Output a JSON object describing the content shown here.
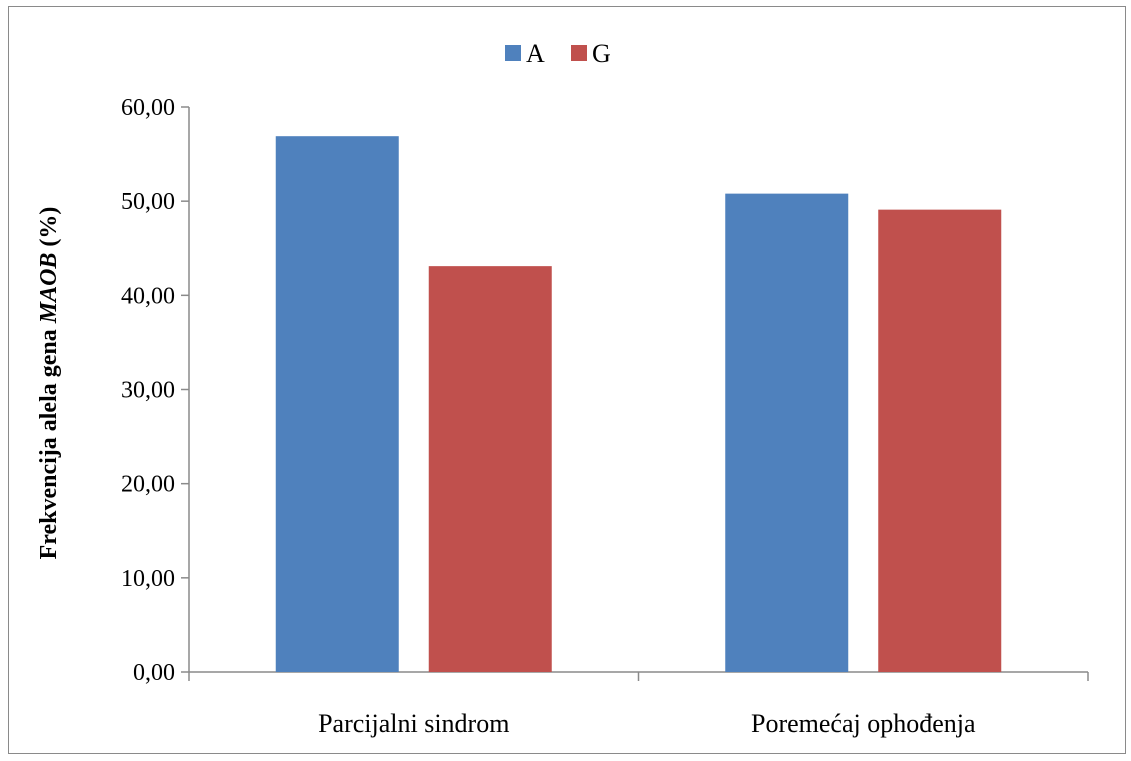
{
  "chart_data": {
    "type": "bar",
    "title": "",
    "xlabel": "",
    "ylabel": "Frekvencija alela gena",
    "ylabel_italic": "MAOB",
    "ylabel_suffix": "(%)",
    "categories": [
      "Parcijalni sindrom",
      "Poremećaj ophođenja"
    ],
    "series": [
      {
        "name": "A",
        "values": [
          56.9,
          50.8
        ],
        "color": "#4f81bd"
      },
      {
        "name": "G",
        "values": [
          43.1,
          49.1
        ],
        "color": "#c0504d"
      }
    ],
    "ylim": [
      0,
      60
    ],
    "yticks": [
      0,
      10,
      20,
      30,
      40,
      50,
      60
    ],
    "ytick_labels": [
      "0,00",
      "10,00",
      "20,00",
      "30,00",
      "40,00",
      "50,00",
      "60,00"
    ],
    "legend_position": "top-center",
    "grid": false,
    "axis_color": "#8a8a8a"
  }
}
